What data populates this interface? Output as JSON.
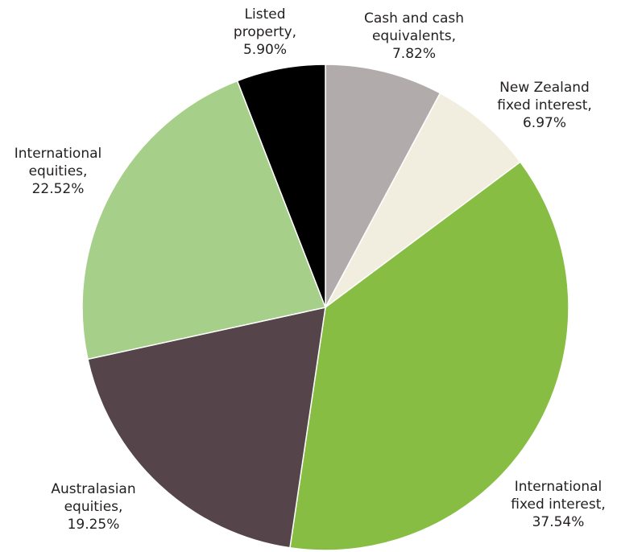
{
  "chart_data": {
    "type": "pie",
    "title": "",
    "start_angle_deg": 0,
    "direction": "clockwise",
    "slices": [
      {
        "label_lines": [
          "Cash and cash",
          "equivalents,"
        ],
        "value_text": "7.82%",
        "value": 7.82,
        "color": "#b1acab"
      },
      {
        "label_lines": [
          "New Zealand",
          "fixed interest,"
        ],
        "value_text": "6.97%",
        "value": 6.97,
        "color": "#f2eedf"
      },
      {
        "label_lines": [
          "International",
          "fixed interest,"
        ],
        "value_text": "37.54%",
        "value": 37.54,
        "color": "#86bd42"
      },
      {
        "label_lines": [
          "Australasian",
          "equities,"
        ],
        "value_text": "19.25%",
        "value": 19.25,
        "color": "#554449"
      },
      {
        "label_lines": [
          "International",
          "equities,"
        ],
        "value_text": "22.52%",
        "value": 22.52,
        "color": "#a6cf8a"
      },
      {
        "label_lines": [
          "Listed",
          "property,"
        ],
        "value_text": "5.90%",
        "value": 5.9,
        "color": "#000000"
      }
    ]
  }
}
